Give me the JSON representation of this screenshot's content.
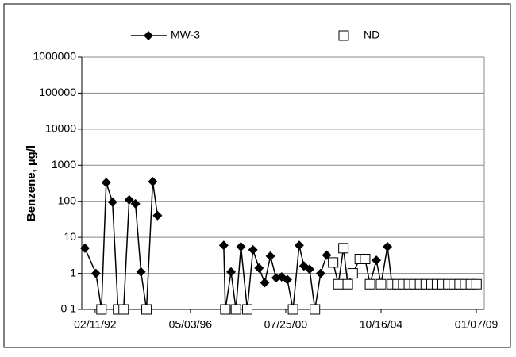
{
  "chart_data": {
    "type": "line",
    "ylabel": "Benzene, µg/l",
    "yscale": "log",
    "ylim": [
      0.1,
      1000000
    ],
    "yticks": [
      {
        "value": 0.1,
        "label": "0 1"
      },
      1,
      10,
      100,
      1000,
      10000,
      100000,
      1000000
    ],
    "xlim": [
      "07/09/91",
      "05/15/09"
    ],
    "xticks": [
      "02/11/92",
      "05/03/96",
      "07/25/00",
      "10/16/04",
      "01/07/09"
    ],
    "grid": true,
    "legend": "top",
    "series": [
      {
        "name": "MW-3",
        "color": "#000000",
        "marker": "diamond",
        "line": true,
        "x": [
          "08/29/91",
          "02/24/92",
          "05/23/92",
          "08/08/92",
          "11/18/92",
          "02/16/93",
          "05/17/93",
          "08/15/93",
          "11/25/93",
          "02/22/94",
          "05/23/94",
          "09/01/94",
          "11/17/94",
          null,
          "10/25/97",
          "11/20/97",
          "02/20/98",
          "05/10/98",
          "07/30/98",
          "11/10/98",
          "02/10/99",
          "05/20/99",
          "08/20/99",
          "11/20/99",
          "02/20/00",
          "05/20/00",
          "08/20/00",
          "11/20/00",
          "02/28/01",
          "05/15/01",
          "08/15/01",
          "11/10/01",
          "02/10/02",
          "05/20/02",
          "09/01/02",
          "11/25/02",
          "02/15/03",
          "04/26/03",
          "07/15/03",
          "11/06/03",
          "02/01/04",
          "04/20/04",
          "08/01/04",
          "10/16/04",
          "01/28/05",
          "04/10/05",
          "07/10/05",
          "10/10/05",
          "01/10/06",
          "04/10/06",
          "07/10/06",
          "10/10/06",
          "01/10/07",
          "04/10/07",
          "07/10/07",
          "10/10/07",
          "01/10/08",
          "04/10/08",
          "07/10/08",
          "10/10/08",
          "01/10/09"
        ],
        "values": [
          5,
          1,
          0.1,
          330,
          95,
          0.1,
          0.1,
          110,
          85,
          1.1,
          0.1,
          350,
          40,
          null,
          6,
          0.1,
          1.1,
          0.1,
          5.5,
          0.1,
          4.5,
          1.4,
          0.55,
          3,
          0.75,
          0.8,
          0.67,
          0.1,
          6,
          1.6,
          1.3,
          0.1,
          1,
          3.2,
          2,
          0.5,
          5,
          0.5,
          1,
          2.5,
          2.5,
          0.5,
          2.3,
          0.5,
          5.5,
          0.5,
          0.5,
          0.5,
          0.5,
          0.5,
          0.5,
          0.5,
          0.5,
          0.5,
          0.5,
          0.5,
          0.5,
          0.5,
          0.5,
          0.5,
          0.5
        ]
      },
      {
        "name": "ND",
        "color": "#000000",
        "marker": "square",
        "line": false,
        "x": [
          "05/23/92",
          "02/16/93",
          "05/17/93",
          "05/23/94",
          "11/20/97",
          "05/10/98",
          "11/10/98",
          "11/20/00",
          "11/10/01",
          "09/01/02",
          "11/25/02",
          "02/15/03",
          "04/26/03",
          "07/15/03",
          "11/06/03",
          "02/01/04",
          "04/20/04",
          "10/16/04",
          "04/10/05",
          "07/10/05",
          "10/10/05",
          "01/10/06",
          "04/10/06",
          "07/10/06",
          "10/10/06",
          "01/10/07",
          "04/10/07",
          "07/10/07",
          "10/10/07",
          "01/10/08",
          "04/10/08",
          "07/10/08",
          "10/10/08",
          "01/10/09"
        ],
        "values": [
          0.1,
          0.1,
          0.1,
          0.1,
          0.1,
          0.1,
          0.1,
          0.1,
          0.1,
          2,
          0.5,
          5,
          0.5,
          1,
          2.5,
          2.5,
          0.5,
          0.5,
          0.5,
          0.5,
          0.5,
          0.5,
          0.5,
          0.5,
          0.5,
          0.5,
          0.5,
          0.5,
          0.5,
          0.5,
          0.5,
          0.5,
          0.5,
          0.5
        ]
      }
    ]
  }
}
